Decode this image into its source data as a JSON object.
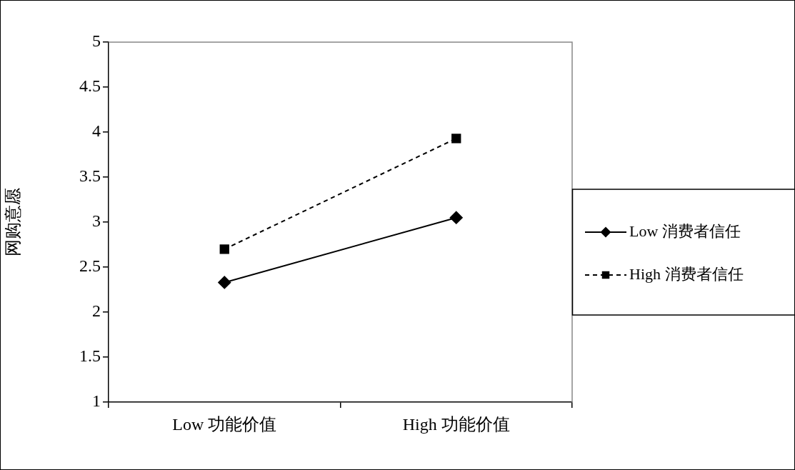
{
  "chart_data": {
    "type": "line",
    "ylabel": "网购意愿",
    "categories": [
      "Low 功能价值",
      "High 功能价值"
    ],
    "series": [
      {
        "name": "Low 消费者信任",
        "color": "#000000",
        "values": [
          2.33,
          3.05
        ],
        "marker": "diamond",
        "line_style": "solid"
      },
      {
        "name": "High 消费者信任",
        "color": "#000000",
        "values": [
          2.7,
          3.93
        ],
        "marker": "square",
        "line_style": "dashed"
      }
    ],
    "ylim": [
      1,
      5
    ],
    "yticks": [
      1,
      1.5,
      2,
      2.5,
      3,
      3.5,
      4,
      4.5,
      5
    ],
    "grid": false,
    "legend": "right"
  }
}
